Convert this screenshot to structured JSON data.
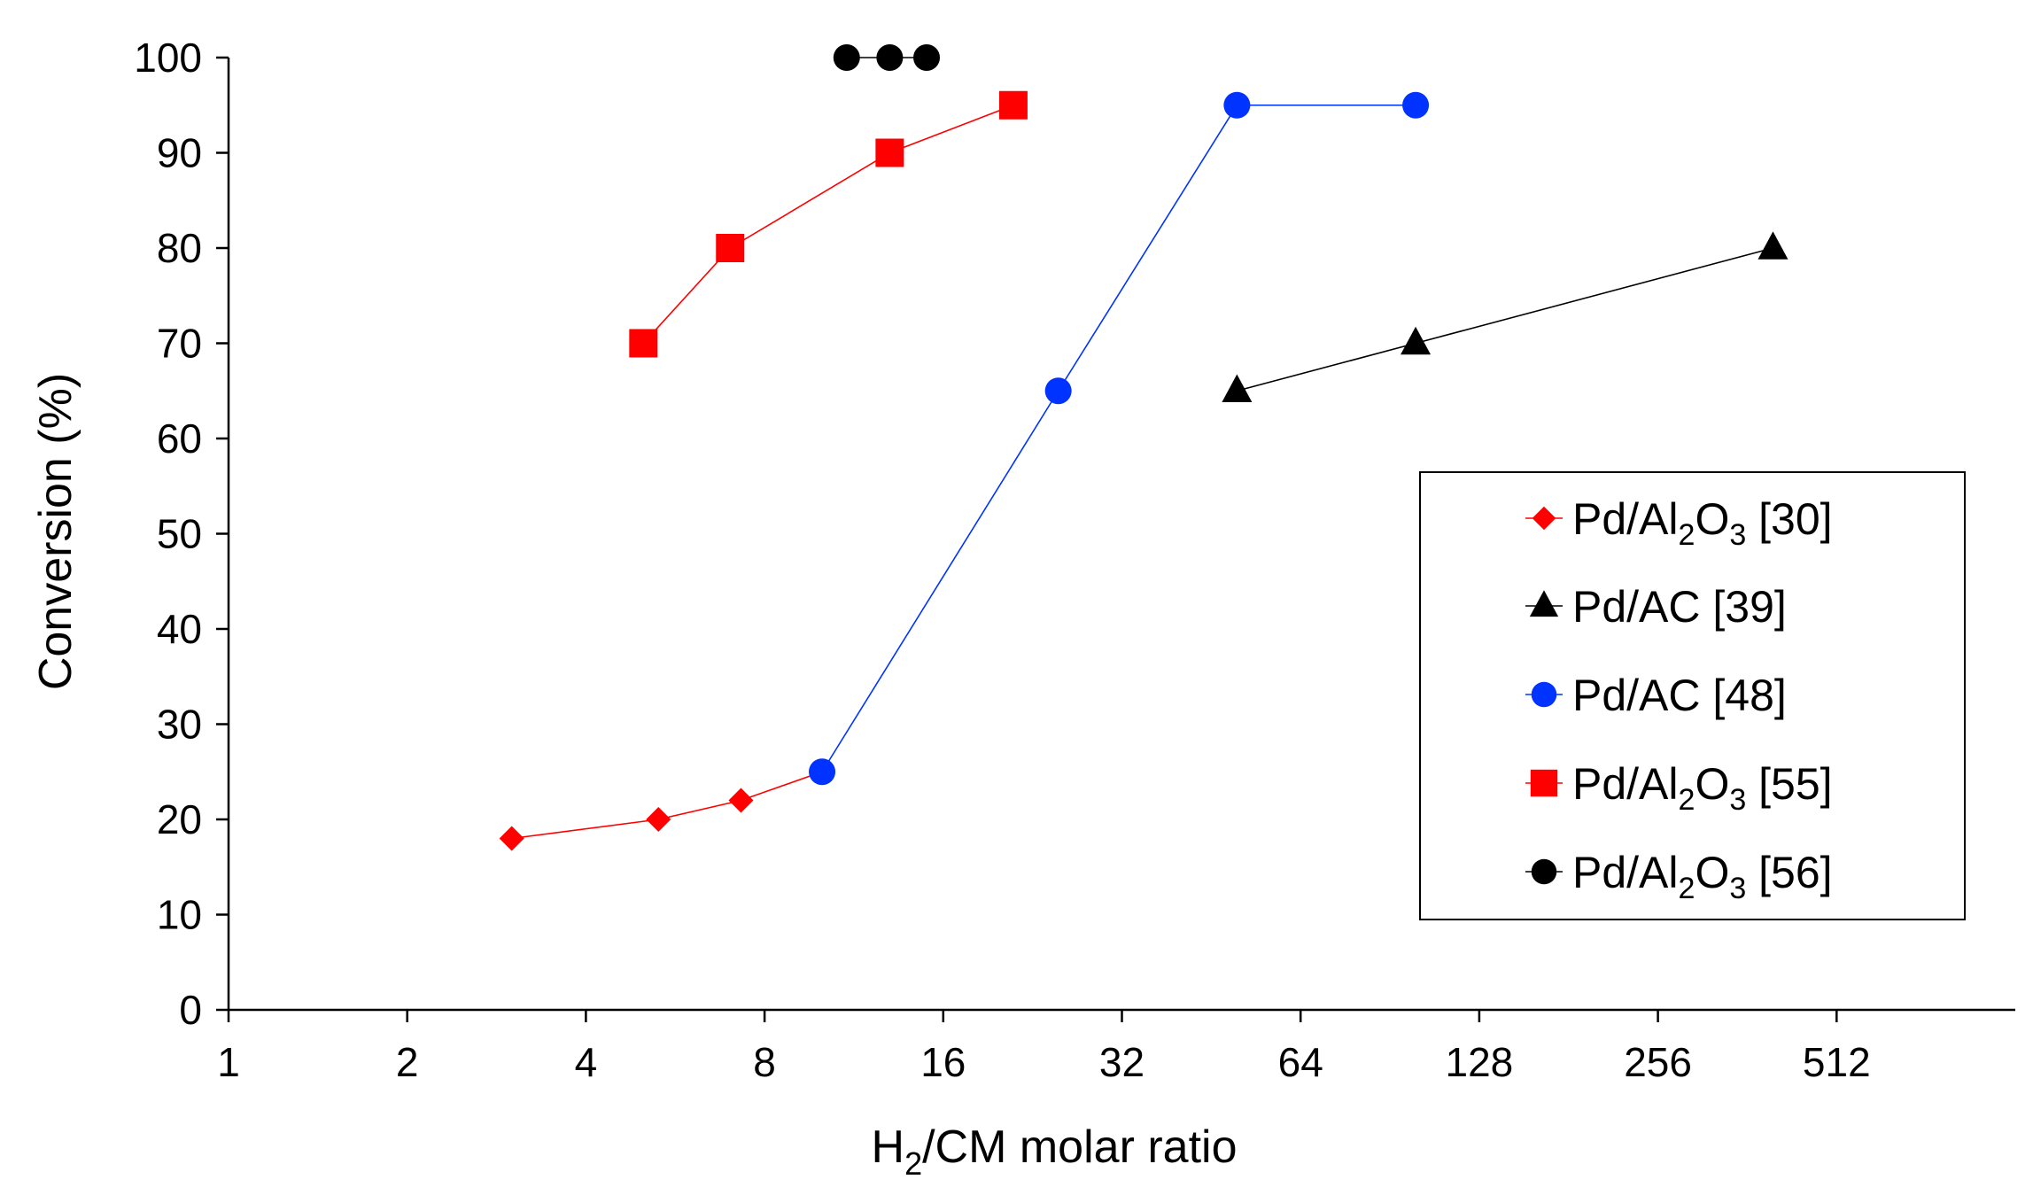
{
  "chart_data": {
    "type": "line",
    "title": "",
    "xlabel": "H2/CM molar ratio",
    "xlabel_parts": {
      "base": "H",
      "sub": "2",
      "rest": "/CM molar ratio"
    },
    "ylabel": "Conversion (%)",
    "xscale": "log2",
    "xlim": [
      1,
      1024
    ],
    "ylim": [
      0,
      100
    ],
    "xticks": [
      1,
      2,
      4,
      8,
      16,
      32,
      64,
      128,
      256,
      512
    ],
    "xtick_labels": [
      "1",
      "2",
      "4",
      "8",
      "16",
      "32",
      "64",
      "128",
      "256",
      "512"
    ],
    "yticks": [
      0,
      10,
      20,
      30,
      40,
      50,
      60,
      70,
      80,
      90,
      100
    ],
    "ytick_labels": [
      "0",
      "10",
      "20",
      "30",
      "40",
      "50",
      "60",
      "70",
      "80",
      "90",
      "100"
    ],
    "grid": false,
    "legend_position": "right",
    "series": [
      {
        "name": "Pd/Al2O3 [30]",
        "label_parts": {
          "a": "Pd/Al",
          "s1": "2",
          "b": "O",
          "s2": "3",
          "ref": "[30]"
        },
        "marker": "diamond",
        "color": "#ff0000",
        "points": [
          [
            3,
            18
          ],
          [
            5.3,
            20
          ],
          [
            7.3,
            22
          ],
          [
            10,
            25
          ]
        ]
      },
      {
        "name": "Pd/AC [39]",
        "label_parts": {
          "a": "Pd/AC",
          "ref": "[39]"
        },
        "marker": "triangle",
        "color": "#000000",
        "points": [
          [
            50,
            65
          ],
          [
            100,
            70
          ],
          [
            400,
            80
          ]
        ]
      },
      {
        "name": "Pd/AC [48]",
        "label_parts": {
          "a": "Pd/AC",
          "ref": "[48]"
        },
        "marker": "circle",
        "color": "#0033ff",
        "points": [
          [
            10,
            25
          ],
          [
            25,
            65
          ],
          [
            50,
            95
          ],
          [
            100,
            95
          ]
        ]
      },
      {
        "name": "Pd/Al2O3 [55]",
        "label_parts": {
          "a": "Pd/Al",
          "s1": "2",
          "b": "O",
          "s2": "3",
          "ref": "[55]"
        },
        "marker": "square",
        "color": "#ff0000",
        "points": [
          [
            5,
            70
          ],
          [
            7,
            80
          ],
          [
            13,
            90
          ],
          [
            21,
            95
          ]
        ]
      },
      {
        "name": "Pd/Al2O3 [56]",
        "label_parts": {
          "a": "Pd/Al",
          "s1": "2",
          "b": "O",
          "s2": "3",
          "ref": "[56]"
        },
        "marker": "circle",
        "color": "#000000",
        "points": [
          [
            11,
            100
          ],
          [
            13,
            100
          ],
          [
            15,
            100
          ]
        ]
      }
    ]
  }
}
